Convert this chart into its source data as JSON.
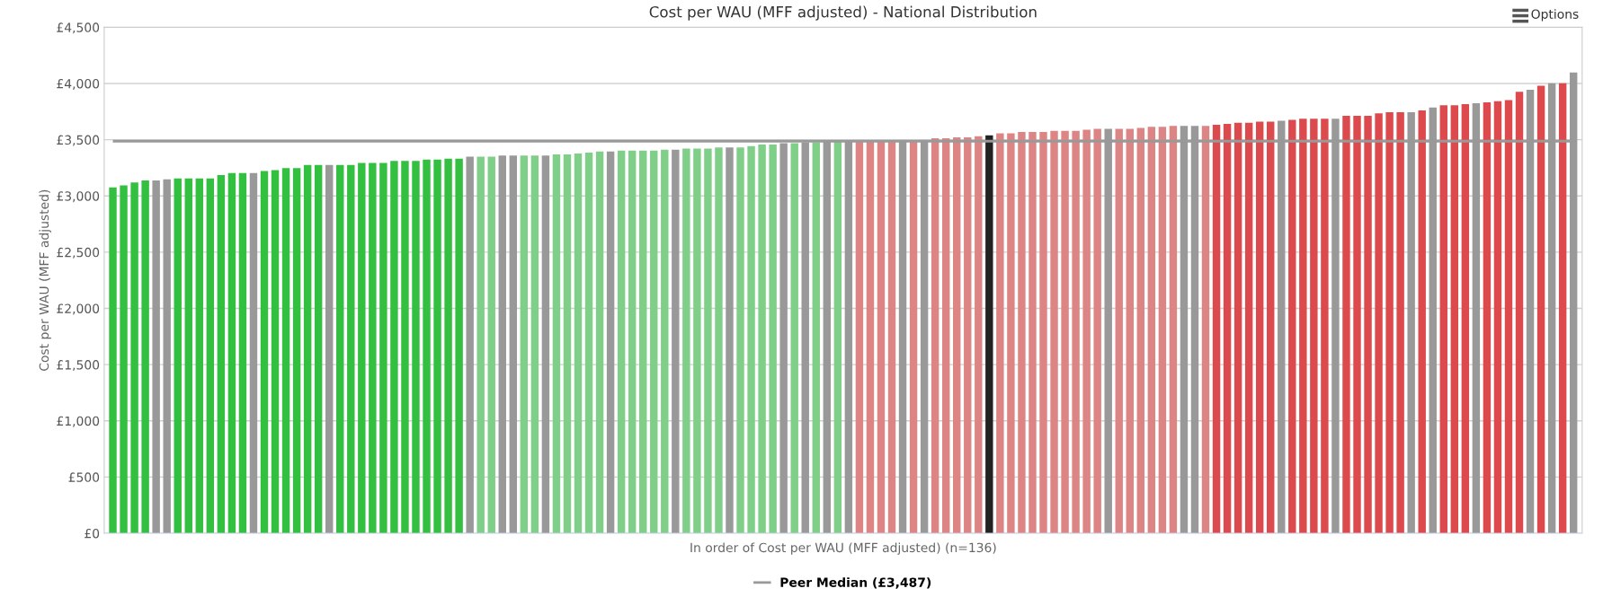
{
  "chart_data": {
    "type": "bar",
    "title": "Cost per WAU (MFF adjusted) - National Distribution",
    "xlabel": "In order of Cost per WAU (MFF adjusted) (n=136)",
    "ylabel": "Cost per WAU (MFF adjusted)",
    "annotations": [
      "Options"
    ],
    "categories": [
      null,
      null,
      null,
      null,
      null,
      null,
      null,
      null,
      null,
      null,
      null,
      null,
      null,
      null,
      null,
      null,
      null,
      null,
      null,
      null,
      null,
      null,
      null,
      null,
      null,
      null,
      null,
      null,
      null,
      null,
      null,
      null,
      null,
      null,
      null,
      null,
      null,
      null,
      null,
      null,
      null,
      null,
      null,
      null,
      null,
      null,
      null,
      null,
      null,
      null,
      null,
      null,
      null,
      null,
      null,
      null,
      null,
      null,
      null,
      null,
      null,
      null,
      null,
      null,
      null,
      null,
      null,
      null,
      null,
      null,
      null,
      null,
      null,
      null,
      null,
      null,
      null,
      null,
      null,
      null,
      null,
      null,
      null,
      null,
      null,
      null,
      null,
      null,
      null,
      null,
      null,
      null,
      null,
      null,
      null,
      null,
      null,
      null,
      null,
      null,
      null,
      null,
      null,
      null,
      null,
      null,
      null,
      null,
      null,
      null,
      null,
      null,
      null,
      null,
      null,
      null,
      null,
      null,
      null,
      null,
      null,
      null,
      null,
      null,
      null,
      null,
      null,
      null,
      null,
      null,
      null,
      null,
      null,
      null,
      null,
      null
    ],
    "values": [
      3076,
      3094,
      3120,
      3138,
      3138,
      3148,
      3156,
      3156,
      3156,
      3156,
      3185,
      3203,
      3203,
      3203,
      3221,
      3229,
      3247,
      3247,
      3276,
      3276,
      3276,
      3276,
      3276,
      3294,
      3294,
      3294,
      3312,
      3312,
      3312,
      3323,
      3323,
      3331,
      3331,
      3349,
      3349,
      3349,
      3359,
      3359,
      3359,
      3359,
      3359,
      3370,
      3370,
      3378,
      3385,
      3396,
      3396,
      3404,
      3404,
      3404,
      3404,
      3411,
      3411,
      3422,
      3422,
      3422,
      3432,
      3432,
      3432,
      3443,
      3458,
      3458,
      3469,
      3469,
      3477,
      3477,
      3492,
      3490,
      3490,
      3490,
      3490,
      3490,
      3490,
      3490,
      3490,
      3490,
      3513,
      3513,
      3521,
      3521,
      3531,
      3539,
      3557,
      3557,
      3568,
      3568,
      3568,
      3578,
      3578,
      3578,
      3588,
      3596,
      3596,
      3596,
      3596,
      3604,
      3615,
      3615,
      3622,
      3622,
      3622,
      3622,
      3632,
      3640,
      3651,
      3651,
      3661,
      3661,
      3669,
      3677,
      3687,
      3687,
      3687,
      3687,
      3713,
      3713,
      3713,
      3734,
      3744,
      3744,
      3744,
      3760,
      3786,
      3806,
      3806,
      3817,
      3825,
      3832,
      3843,
      3853,
      3926,
      3944,
      3980,
      4001,
      4001,
      4097
    ],
    "colors": [
      "#33bf40",
      "#33bf40",
      "#33bf40",
      "#33bf40",
      "#999999",
      "#999999",
      "#33bf40",
      "#33bf40",
      "#33bf40",
      "#33bf40",
      "#33bf40",
      "#33bf40",
      "#33bf40",
      "#999999",
      "#33bf40",
      "#33bf40",
      "#33bf40",
      "#33bf40",
      "#33bf40",
      "#33bf40",
      "#999999",
      "#33bf40",
      "#33bf40",
      "#33bf40",
      "#33bf40",
      "#33bf40",
      "#33bf40",
      "#33bf40",
      "#33bf40",
      "#33bf40",
      "#33bf40",
      "#33bf40",
      "#33bf40",
      "#999999",
      "#80cf88",
      "#80cf88",
      "#999999",
      "#999999",
      "#80cf88",
      "#80cf88",
      "#999999",
      "#80cf88",
      "#80cf88",
      "#80cf88",
      "#80cf88",
      "#80cf88",
      "#999999",
      "#80cf88",
      "#80cf88",
      "#80cf88",
      "#80cf88",
      "#80cf88",
      "#999999",
      "#80cf88",
      "#80cf88",
      "#80cf88",
      "#80cf88",
      "#999999",
      "#80cf88",
      "#80cf88",
      "#80cf88",
      "#80cf88",
      "#999999",
      "#80cf88",
      "#999999",
      "#80cf88",
      "#999999",
      "#80cf88",
      "#999999",
      "#dd8585",
      "#dd8585",
      "#dd8585",
      "#dd8585",
      "#999999",
      "#dd8585",
      "#999999",
      "#dd8585",
      "#dd8585",
      "#dd8585",
      "#dd8585",
      "#dd8585",
      "#222222",
      "#dd8585",
      "#dd8585",
      "#dd8585",
      "#dd8585",
      "#dd8585",
      "#dd8585",
      "#dd8585",
      "#dd8585",
      "#dd8585",
      "#dd8585",
      "#999999",
      "#dd8585",
      "#dd8585",
      "#dd8585",
      "#dd8585",
      "#dd8585",
      "#dd8585",
      "#999999",
      "#999999",
      "#dd8585",
      "#dc4a4e",
      "#dc4a4e",
      "#dc4a4e",
      "#dc4a4e",
      "#dc4a4e",
      "#dc4a4e",
      "#999999",
      "#dc4a4e",
      "#dc4a4e",
      "#dc4a4e",
      "#dc4a4e",
      "#999999",
      "#dc4a4e",
      "#dc4a4e",
      "#dc4a4e",
      "#dc4a4e",
      "#dc4a4e",
      "#dc4a4e",
      "#999999",
      "#dc4a4e",
      "#999999",
      "#dc4a4e",
      "#dc4a4e",
      "#dc4a4e",
      "#999999",
      "#dc4a4e",
      "#dc4a4e",
      "#dc4a4e",
      "#dc4a4e",
      "#999999",
      "#dc4a4e",
      "#999999",
      "#dc4a4e",
      "#999999"
    ],
    "ylim": [
      0,
      4500
    ],
    "yticks": [
      {
        "value": 0,
        "label": "£0"
      },
      {
        "value": 500,
        "label": "£500"
      },
      {
        "value": 1000,
        "label": "£1,000"
      },
      {
        "value": 1500,
        "label": "£1,500"
      },
      {
        "value": 2000,
        "label": "£2,000"
      },
      {
        "value": 2500,
        "label": "£2,500"
      },
      {
        "value": 3000,
        "label": "£3,000"
      },
      {
        "value": 3500,
        "label": "£3,500"
      },
      {
        "value": 4000,
        "label": "£4,000"
      },
      {
        "value": 4500,
        "label": "£4,500"
      }
    ],
    "grid": "y",
    "ref_lines": [
      {
        "axis": "y",
        "value": 3487,
        "label": "Peer Median (£3,487)",
        "color": "#999999"
      }
    ],
    "legend": "bottom"
  }
}
